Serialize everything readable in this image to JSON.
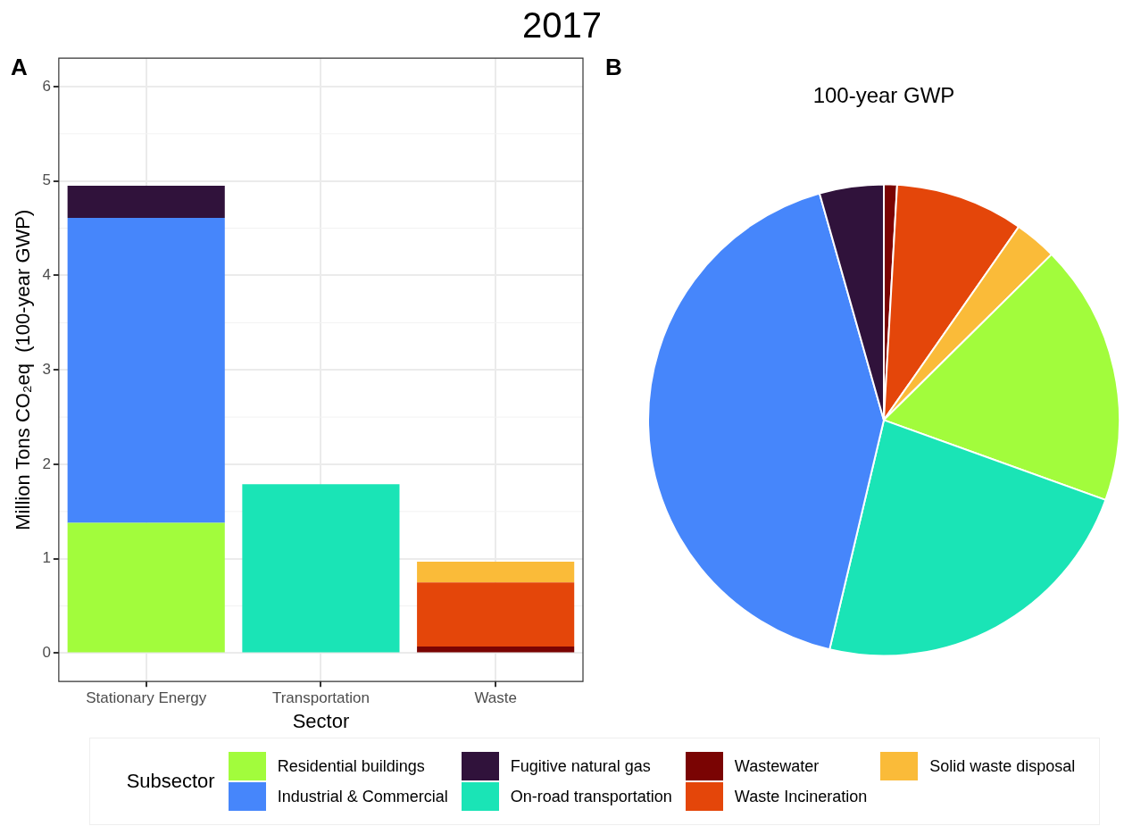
{
  "chart_data": [
    {
      "type": "bar",
      "title": "2017",
      "xlabel": "Sector",
      "ylabel": "Million Tons CO₂eq  (100-year GWP)",
      "legend_title": "Subsector",
      "annotations": [
        "A"
      ],
      "categories": [
        "Stationary Energy",
        "Transportation",
        "Waste"
      ],
      "stacked": true,
      "grid": true,
      "legend": "bottom",
      "ylim": [
        -0.3,
        6.3
      ],
      "yticks": [
        0,
        1,
        2,
        3,
        4,
        5,
        6
      ],
      "series": [
        {
          "name": "Residential buildings",
          "color": "#a2fc3c",
          "values": [
            1.38,
            null,
            null
          ]
        },
        {
          "name": "Industrial & Commercial",
          "color": "#4686fb",
          "values": [
            3.23,
            null,
            null
          ]
        },
        {
          "name": "Fugitive natural gas",
          "color": "#30123b",
          "values": [
            0.34,
            null,
            null
          ]
        },
        {
          "name": "On-road transportation",
          "color": "#1ae4b6",
          "values": [
            null,
            1.79,
            null
          ]
        },
        {
          "name": "Wastewater",
          "color": "#7a0403",
          "values": [
            null,
            null,
            0.07
          ]
        },
        {
          "name": "Waste Incineration",
          "color": "#e4460a",
          "values": [
            null,
            null,
            0.68
          ]
        },
        {
          "name": "Solid waste disposal",
          "color": "#fabb39",
          "values": [
            null,
            null,
            0.22
          ]
        }
      ]
    },
    {
      "type": "pie",
      "title": "100-year GWP",
      "annotations": [
        "B"
      ],
      "categories": [
        null,
        null,
        null,
        null,
        null,
        null,
        null
      ],
      "values": [
        0.9,
        8.8,
        2.9,
        17.9,
        23.2,
        41.9,
        4.4
      ],
      "colors": [
        "#7a0403",
        "#e4460a",
        "#fabb39",
        "#a2fc3c",
        "#1ae4b6",
        "#4686fb",
        "#30123b"
      ]
    }
  ]
}
